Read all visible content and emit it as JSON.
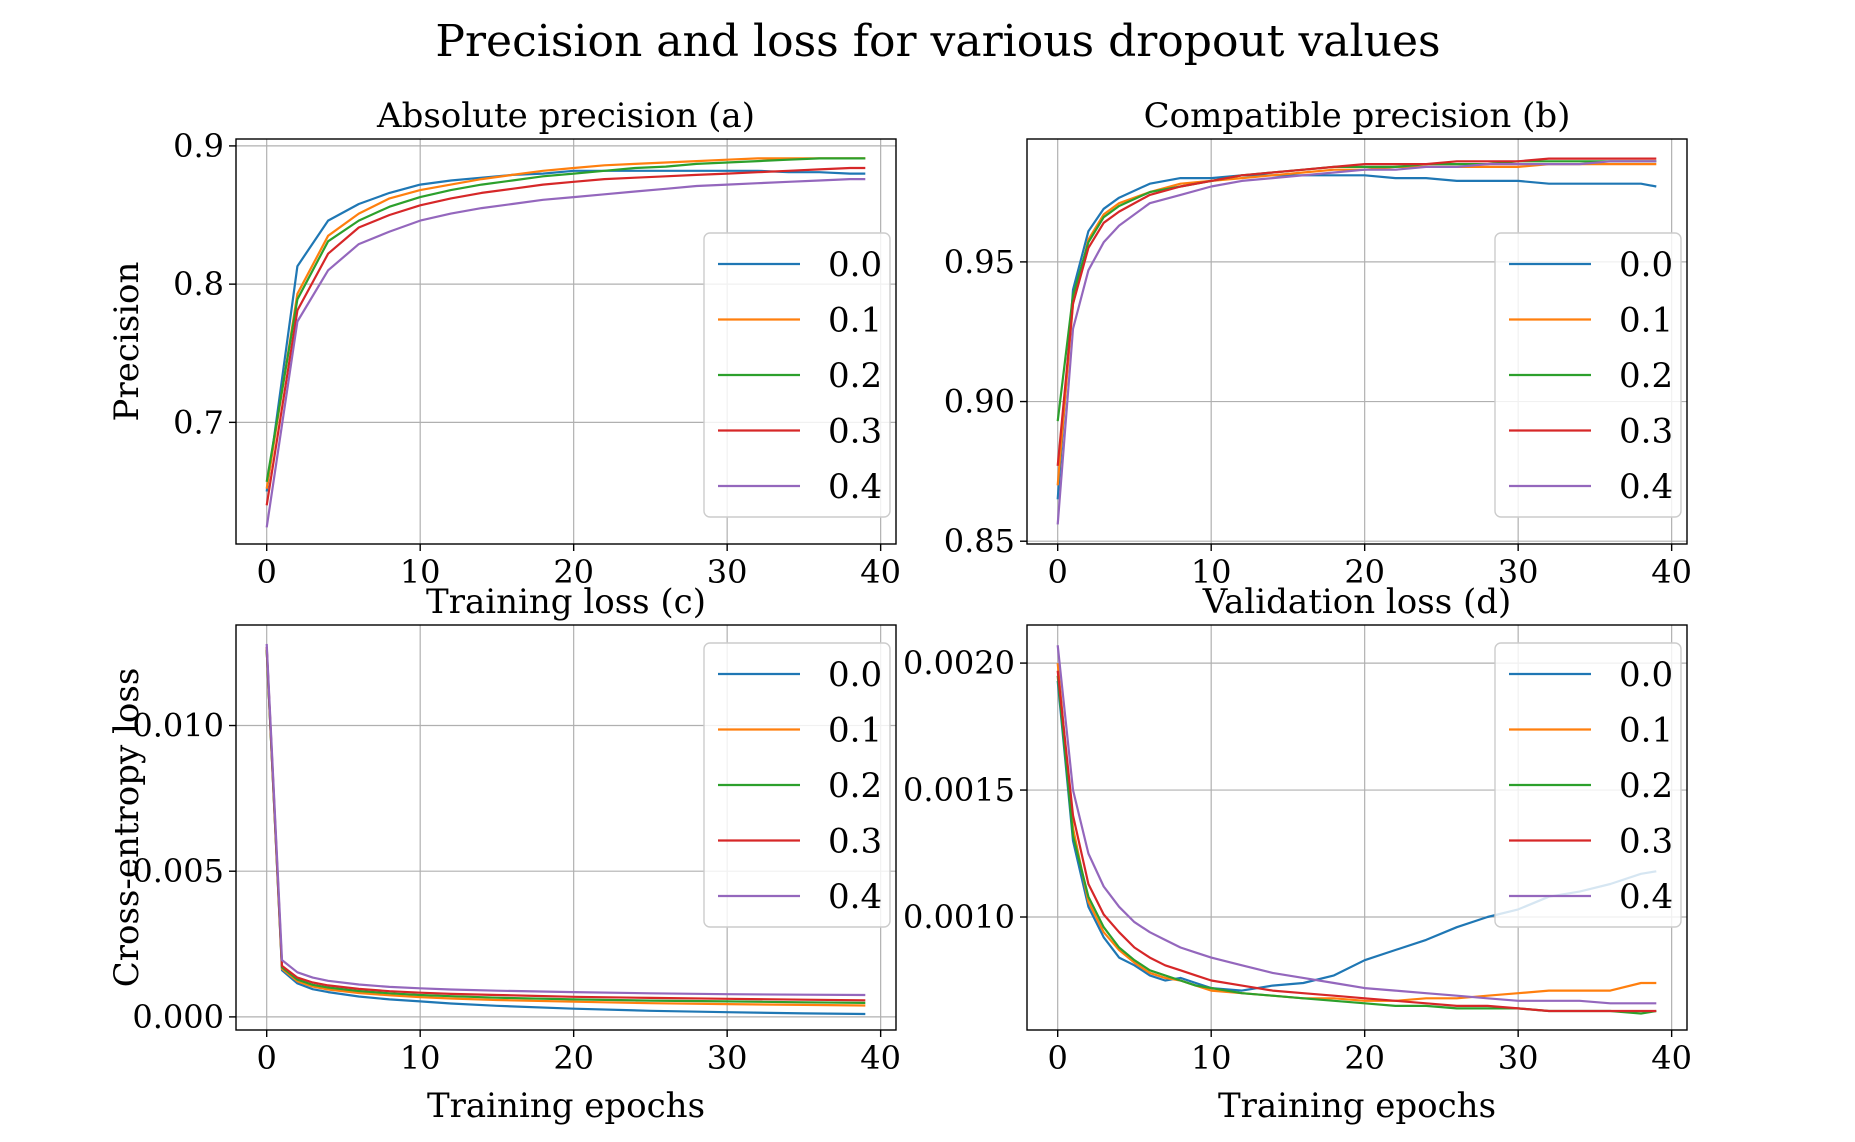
{
  "figure_title": "Precision and loss for various dropout values",
  "series_names": [
    "0.0",
    "0.1",
    "0.2",
    "0.3",
    "0.4"
  ],
  "colors": [
    "#1f77b4",
    "#ff7f0e",
    "#2ca02c",
    "#d62728",
    "#9467bd"
  ],
  "chart_data": [
    {
      "type": "line",
      "title": "Absolute precision (a)",
      "xlabel": "Training epochs",
      "ylabel": "Precision",
      "xlim": [
        -2,
        41
      ],
      "ylim": [
        0.612,
        0.905
      ],
      "xticks": [
        0,
        10,
        20,
        30,
        40
      ],
      "yticks": [
        0.7,
        0.8,
        0.9
      ],
      "tick_labels_y": [
        "0.7",
        "0.8",
        "0.9"
      ],
      "show_xlabel": false,
      "grid": true,
      "legend": "center-right",
      "x": [
        0,
        2,
        4,
        6,
        8,
        10,
        12,
        14,
        16,
        18,
        20,
        22,
        24,
        26,
        28,
        30,
        32,
        34,
        36,
        38,
        39
      ],
      "series": [
        {
          "name": "0.0",
          "values": [
            0.65,
            0.813,
            0.846,
            0.858,
            0.866,
            0.872,
            0.875,
            0.877,
            0.879,
            0.88,
            0.882,
            0.882,
            0.882,
            0.882,
            0.882,
            0.882,
            0.882,
            0.881,
            0.881,
            0.88,
            0.88
          ]
        },
        {
          "name": "0.1",
          "values": [
            0.652,
            0.793,
            0.835,
            0.851,
            0.862,
            0.868,
            0.872,
            0.876,
            0.879,
            0.882,
            0.884,
            0.886,
            0.887,
            0.888,
            0.889,
            0.89,
            0.891,
            0.891,
            0.891,
            0.891,
            0.891
          ]
        },
        {
          "name": "0.2",
          "values": [
            0.657,
            0.789,
            0.831,
            0.846,
            0.856,
            0.863,
            0.868,
            0.872,
            0.875,
            0.878,
            0.88,
            0.882,
            0.884,
            0.885,
            0.887,
            0.888,
            0.889,
            0.89,
            0.891,
            0.891,
            0.891
          ]
        },
        {
          "name": "0.3",
          "values": [
            0.64,
            0.781,
            0.822,
            0.841,
            0.85,
            0.857,
            0.862,
            0.866,
            0.869,
            0.872,
            0.874,
            0.876,
            0.877,
            0.878,
            0.879,
            0.88,
            0.881,
            0.882,
            0.883,
            0.884,
            0.884
          ]
        },
        {
          "name": "0.4",
          "values": [
            0.624,
            0.773,
            0.81,
            0.829,
            0.838,
            0.846,
            0.851,
            0.855,
            0.858,
            0.861,
            0.863,
            0.865,
            0.867,
            0.869,
            0.871,
            0.872,
            0.873,
            0.874,
            0.875,
            0.876,
            0.876
          ]
        }
      ]
    },
    {
      "type": "line",
      "title": "Compatible precision (b)",
      "xlabel": "Training epochs",
      "ylabel": "",
      "xlim": [
        -2,
        41
      ],
      "ylim": [
        0.849,
        0.994
      ],
      "xticks": [
        0,
        10,
        20,
        30,
        40
      ],
      "yticks": [
        0.85,
        0.9,
        0.95
      ],
      "tick_labels_y": [
        "0.85",
        "0.90",
        "0.95"
      ],
      "show_xlabel": false,
      "grid": true,
      "legend": "center-right",
      "x": [
        0,
        1,
        2,
        3,
        4,
        6,
        8,
        10,
        12,
        14,
        16,
        18,
        20,
        22,
        24,
        26,
        28,
        30,
        32,
        34,
        36,
        38,
        39
      ],
      "series": [
        {
          "name": "0.0",
          "values": [
            0.865,
            0.94,
            0.961,
            0.969,
            0.973,
            0.978,
            0.98,
            0.98,
            0.981,
            0.981,
            0.981,
            0.981,
            0.981,
            0.98,
            0.98,
            0.979,
            0.979,
            0.979,
            0.978,
            0.978,
            0.978,
            0.978,
            0.977
          ]
        },
        {
          "name": "0.1",
          "values": [
            0.87,
            0.935,
            0.958,
            0.967,
            0.971,
            0.975,
            0.978,
            0.979,
            0.98,
            0.981,
            0.982,
            0.983,
            0.983,
            0.984,
            0.984,
            0.984,
            0.984,
            0.984,
            0.985,
            0.985,
            0.985,
            0.985,
            0.985
          ]
        },
        {
          "name": "0.2",
          "values": [
            0.893,
            0.938,
            0.957,
            0.966,
            0.97,
            0.975,
            0.977,
            0.979,
            0.981,
            0.982,
            0.983,
            0.984,
            0.984,
            0.984,
            0.985,
            0.985,
            0.985,
            0.986,
            0.986,
            0.986,
            0.986,
            0.986,
            0.986
          ]
        },
        {
          "name": "0.3",
          "values": [
            0.877,
            0.935,
            0.955,
            0.964,
            0.968,
            0.974,
            0.977,
            0.979,
            0.981,
            0.982,
            0.983,
            0.984,
            0.985,
            0.985,
            0.985,
            0.986,
            0.986,
            0.986,
            0.987,
            0.987,
            0.987,
            0.987,
            0.987
          ]
        },
        {
          "name": "0.4",
          "values": [
            0.856,
            0.926,
            0.947,
            0.957,
            0.963,
            0.971,
            0.974,
            0.977,
            0.979,
            0.98,
            0.981,
            0.982,
            0.983,
            0.983,
            0.984,
            0.984,
            0.985,
            0.985,
            0.985,
            0.985,
            0.986,
            0.986,
            0.986
          ]
        }
      ]
    },
    {
      "type": "line",
      "title": "Training loss (c)",
      "xlabel": "Training epochs",
      "ylabel": "Cross-entropy loss",
      "xlim": [
        -2,
        41
      ],
      "ylim": [
        -0.00045,
        0.01345
      ],
      "xticks": [
        0,
        10,
        20,
        30,
        40
      ],
      "yticks": [
        0.0,
        0.005,
        0.01
      ],
      "tick_labels_y": [
        "0.000",
        "0.005",
        "0.010"
      ],
      "show_xlabel": true,
      "grid": true,
      "legend": "center-right",
      "x": [
        0,
        1,
        2,
        3,
        4,
        6,
        8,
        10,
        12,
        15,
        20,
        25,
        30,
        35,
        39
      ],
      "series": [
        {
          "name": "0.0",
          "values": [
            0.0126,
            0.0016,
            0.00115,
            0.00095,
            0.00085,
            0.0007,
            0.0006,
            0.00053,
            0.00046,
            0.00038,
            0.00028,
            0.00021,
            0.00016,
            0.00012,
            0.0001
          ]
        },
        {
          "name": "0.1",
          "values": [
            0.0126,
            0.00165,
            0.00122,
            0.00104,
            0.00094,
            0.00082,
            0.00074,
            0.00068,
            0.00063,
            0.00058,
            0.00052,
            0.00047,
            0.00044,
            0.00041,
            0.00039
          ]
        },
        {
          "name": "0.2",
          "values": [
            0.0126,
            0.0017,
            0.00128,
            0.0011,
            0.00101,
            0.00089,
            0.00081,
            0.00075,
            0.00071,
            0.00066,
            0.0006,
            0.00056,
            0.00053,
            0.0005,
            0.00048
          ]
        },
        {
          "name": "0.3",
          "values": [
            0.0127,
            0.00175,
            0.00135,
            0.00118,
            0.00108,
            0.00096,
            0.00088,
            0.00083,
            0.00079,
            0.00075,
            0.00069,
            0.00065,
            0.00062,
            0.00059,
            0.00057
          ]
        },
        {
          "name": "0.4",
          "values": [
            0.0128,
            0.00195,
            0.00153,
            0.00135,
            0.00124,
            0.00111,
            0.00103,
            0.00098,
            0.00094,
            0.0009,
            0.00085,
            0.00081,
            0.00078,
            0.00076,
            0.00075
          ]
        }
      ]
    },
    {
      "type": "line",
      "title": "Validation loss (d)",
      "xlabel": "Training epochs",
      "ylabel": "",
      "xlim": [
        -2,
        41
      ],
      "ylim": [
        0.000555,
        0.00215
      ],
      "xticks": [
        0,
        10,
        20,
        30,
        40
      ],
      "yticks": [
        0.001,
        0.0015,
        0.002
      ],
      "tick_labels_y": [
        "0.0010",
        "0.0015",
        "0.0020"
      ],
      "show_xlabel": true,
      "grid": true,
      "legend": "top-right",
      "x": [
        0,
        1,
        2,
        3,
        4,
        5,
        6,
        7,
        8,
        9,
        10,
        12,
        14,
        16,
        18,
        20,
        22,
        24,
        26,
        28,
        30,
        32,
        34,
        36,
        38,
        39
      ],
      "series": [
        {
          "name": "0.0",
          "values": [
            0.00193,
            0.0013,
            0.00104,
            0.00092,
            0.00084,
            0.00081,
            0.00077,
            0.00075,
            0.00076,
            0.00074,
            0.00072,
            0.00071,
            0.00073,
            0.00074,
            0.00077,
            0.00083,
            0.00087,
            0.00091,
            0.00096,
            0.001,
            0.00103,
            0.00108,
            0.0011,
            0.00113,
            0.00117,
            0.00118
          ]
        },
        {
          "name": "0.1",
          "values": [
            0.002,
            0.00135,
            0.00106,
            0.00094,
            0.00087,
            0.00082,
            0.00078,
            0.00076,
            0.00075,
            0.00073,
            0.00071,
            0.0007,
            0.00069,
            0.00068,
            0.00068,
            0.00067,
            0.00067,
            0.00068,
            0.00068,
            0.00069,
            0.0007,
            0.00071,
            0.00071,
            0.00071,
            0.00074,
            0.00074
          ]
        },
        {
          "name": "0.2",
          "values": [
            0.00195,
            0.00132,
            0.00108,
            0.00096,
            0.00088,
            0.00083,
            0.00079,
            0.00077,
            0.00075,
            0.00073,
            0.00072,
            0.0007,
            0.00069,
            0.00068,
            0.00067,
            0.00066,
            0.00065,
            0.00065,
            0.00064,
            0.00064,
            0.00064,
            0.00063,
            0.00063,
            0.00063,
            0.00062,
            0.00063
          ]
        },
        {
          "name": "0.3",
          "values": [
            0.00197,
            0.0014,
            0.00113,
            0.00101,
            0.00094,
            0.00088,
            0.00084,
            0.00081,
            0.00079,
            0.00077,
            0.00075,
            0.00073,
            0.00071,
            0.0007,
            0.00069,
            0.00068,
            0.00067,
            0.00066,
            0.00065,
            0.00065,
            0.00064,
            0.00063,
            0.00063,
            0.00063,
            0.00063,
            0.00063
          ]
        },
        {
          "name": "0.4",
          "values": [
            0.00207,
            0.0015,
            0.00125,
            0.00112,
            0.00104,
            0.00098,
            0.00094,
            0.00091,
            0.00088,
            0.00086,
            0.00084,
            0.00081,
            0.00078,
            0.00076,
            0.00074,
            0.00072,
            0.00071,
            0.0007,
            0.00069,
            0.00068,
            0.00067,
            0.00067,
            0.00067,
            0.00066,
            0.00066,
            0.00066
          ]
        }
      ]
    }
  ]
}
